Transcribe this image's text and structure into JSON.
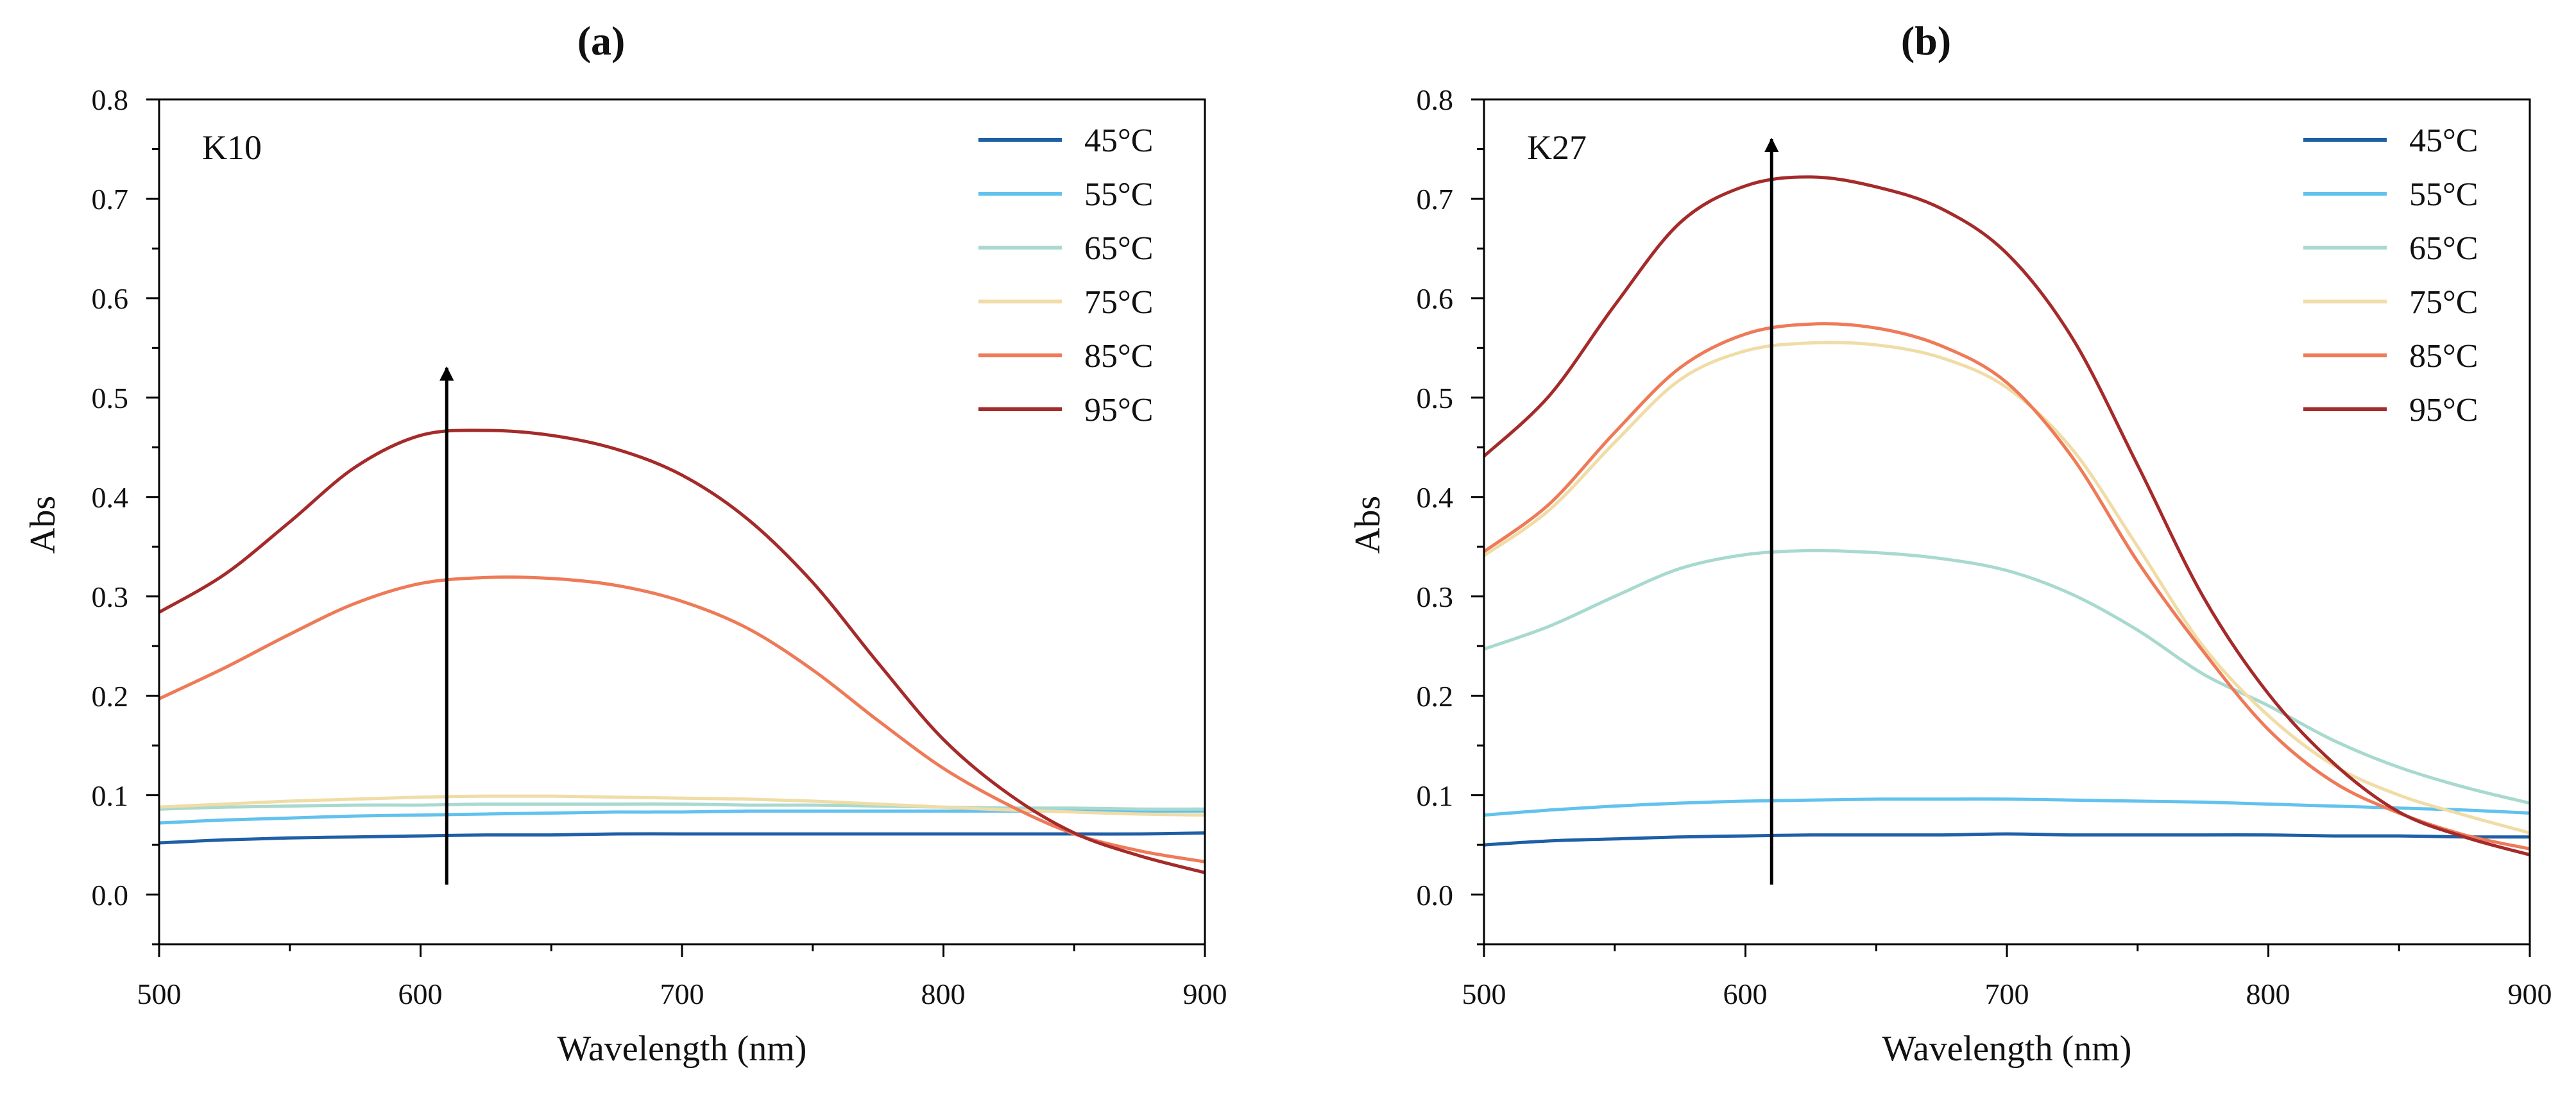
{
  "chart_data": [
    {
      "type": "line",
      "panel_label": "(a)",
      "sample_label": "K10",
      "xlabel": "Wavelength (nm)",
      "ylabel": "Abs",
      "xlim": [
        500,
        900
      ],
      "ylim": [
        -0.05,
        0.8
      ],
      "xticks": [
        500,
        600,
        700,
        800,
        900
      ],
      "yticks": [
        0.0,
        0.1,
        0.2,
        0.3,
        0.4,
        0.5,
        0.6,
        0.7,
        0.8
      ],
      "x": [
        500,
        525,
        550,
        575,
        600,
        625,
        650,
        675,
        700,
        725,
        750,
        775,
        800,
        825,
        850,
        875,
        900
      ],
      "series": [
        {
          "name": "45°C",
          "color": "#1f5fa6",
          "values": [
            0.052,
            0.055,
            0.057,
            0.058,
            0.059,
            0.06,
            0.06,
            0.061,
            0.061,
            0.061,
            0.061,
            0.061,
            0.061,
            0.061,
            0.061,
            0.061,
            0.062
          ]
        },
        {
          "name": "55°C",
          "color": "#62c2ee",
          "values": [
            0.072,
            0.075,
            0.077,
            0.079,
            0.08,
            0.081,
            0.082,
            0.083,
            0.083,
            0.084,
            0.084,
            0.084,
            0.084,
            0.084,
            0.084,
            0.084,
            0.084
          ]
        },
        {
          "name": "65°C",
          "color": "#a8d9cf",
          "values": [
            0.086,
            0.088,
            0.089,
            0.09,
            0.09,
            0.091,
            0.091,
            0.091,
            0.091,
            0.09,
            0.09,
            0.089,
            0.088,
            0.087,
            0.087,
            0.086,
            0.086
          ]
        },
        {
          "name": "75°C",
          "color": "#f0dca6",
          "values": [
            0.088,
            0.091,
            0.094,
            0.096,
            0.098,
            0.099,
            0.099,
            0.098,
            0.097,
            0.096,
            0.094,
            0.091,
            0.088,
            0.085,
            0.083,
            0.081,
            0.08
          ]
        },
        {
          "name": "85°C",
          "color": "#ee7a58",
          "values": [
            0.197,
            0.228,
            0.262,
            0.293,
            0.313,
            0.319,
            0.318,
            0.311,
            0.295,
            0.268,
            0.226,
            0.175,
            0.127,
            0.09,
            0.061,
            0.044,
            0.033
          ]
        },
        {
          "name": "95°C",
          "color": "#a52a2a",
          "values": [
            0.284,
            0.322,
            0.375,
            0.43,
            0.462,
            0.467,
            0.462,
            0.448,
            0.422,
            0.378,
            0.314,
            0.233,
            0.156,
            0.101,
            0.062,
            0.039,
            0.022
          ]
        }
      ],
      "annotations": [
        {
          "type": "arrow",
          "x": 610,
          "y_from": 0.01,
          "y_to": 0.53
        }
      ]
    },
    {
      "type": "line",
      "panel_label": "(b)",
      "sample_label": "K27",
      "xlabel": "Wavelength (nm)",
      "ylabel": "Abs",
      "xlim": [
        500,
        900
      ],
      "ylim": [
        -0.05,
        0.8
      ],
      "xticks": [
        500,
        600,
        700,
        800,
        900
      ],
      "yticks": [
        0.0,
        0.1,
        0.2,
        0.3,
        0.4,
        0.5,
        0.6,
        0.7,
        0.8
      ],
      "x": [
        500,
        525,
        550,
        575,
        600,
        625,
        650,
        675,
        700,
        725,
        750,
        775,
        800,
        825,
        850,
        875,
        900
      ],
      "series": [
        {
          "name": "45°C",
          "color": "#1f5fa6",
          "values": [
            0.05,
            0.054,
            0.056,
            0.058,
            0.059,
            0.06,
            0.06,
            0.06,
            0.061,
            0.06,
            0.06,
            0.06,
            0.06,
            0.059,
            0.059,
            0.058,
            0.058
          ]
        },
        {
          "name": "55°C",
          "color": "#62c2ee",
          "values": [
            0.08,
            0.085,
            0.089,
            0.092,
            0.094,
            0.095,
            0.096,
            0.096,
            0.096,
            0.095,
            0.094,
            0.093,
            0.091,
            0.089,
            0.087,
            0.085,
            0.082
          ]
        },
        {
          "name": "65°C",
          "color": "#a8d9cf",
          "values": [
            0.247,
            0.27,
            0.3,
            0.328,
            0.342,
            0.346,
            0.344,
            0.338,
            0.326,
            0.302,
            0.266,
            0.222,
            0.19,
            0.155,
            0.128,
            0.108,
            0.092
          ]
        },
        {
          "name": "75°C",
          "color": "#f0dca6",
          "values": [
            0.341,
            0.387,
            0.455,
            0.518,
            0.547,
            0.555,
            0.553,
            0.54,
            0.51,
            0.448,
            0.35,
            0.25,
            0.18,
            0.13,
            0.1,
            0.08,
            0.062
          ]
        },
        {
          "name": "85°C",
          "color": "#ee7a58",
          "values": [
            0.345,
            0.393,
            0.465,
            0.53,
            0.564,
            0.574,
            0.57,
            0.552,
            0.515,
            0.44,
            0.335,
            0.245,
            0.166,
            0.113,
            0.082,
            0.06,
            0.046
          ]
        },
        {
          "name": "95°C",
          "color": "#a52a2a",
          "values": [
            0.441,
            0.502,
            0.593,
            0.676,
            0.713,
            0.722,
            0.712,
            0.69,
            0.645,
            0.56,
            0.432,
            0.3,
            0.202,
            0.132,
            0.083,
            0.058,
            0.04
          ]
        }
      ],
      "annotations": [
        {
          "type": "arrow",
          "x": 610,
          "y_from": 0.01,
          "y_to": 0.76
        }
      ]
    }
  ]
}
